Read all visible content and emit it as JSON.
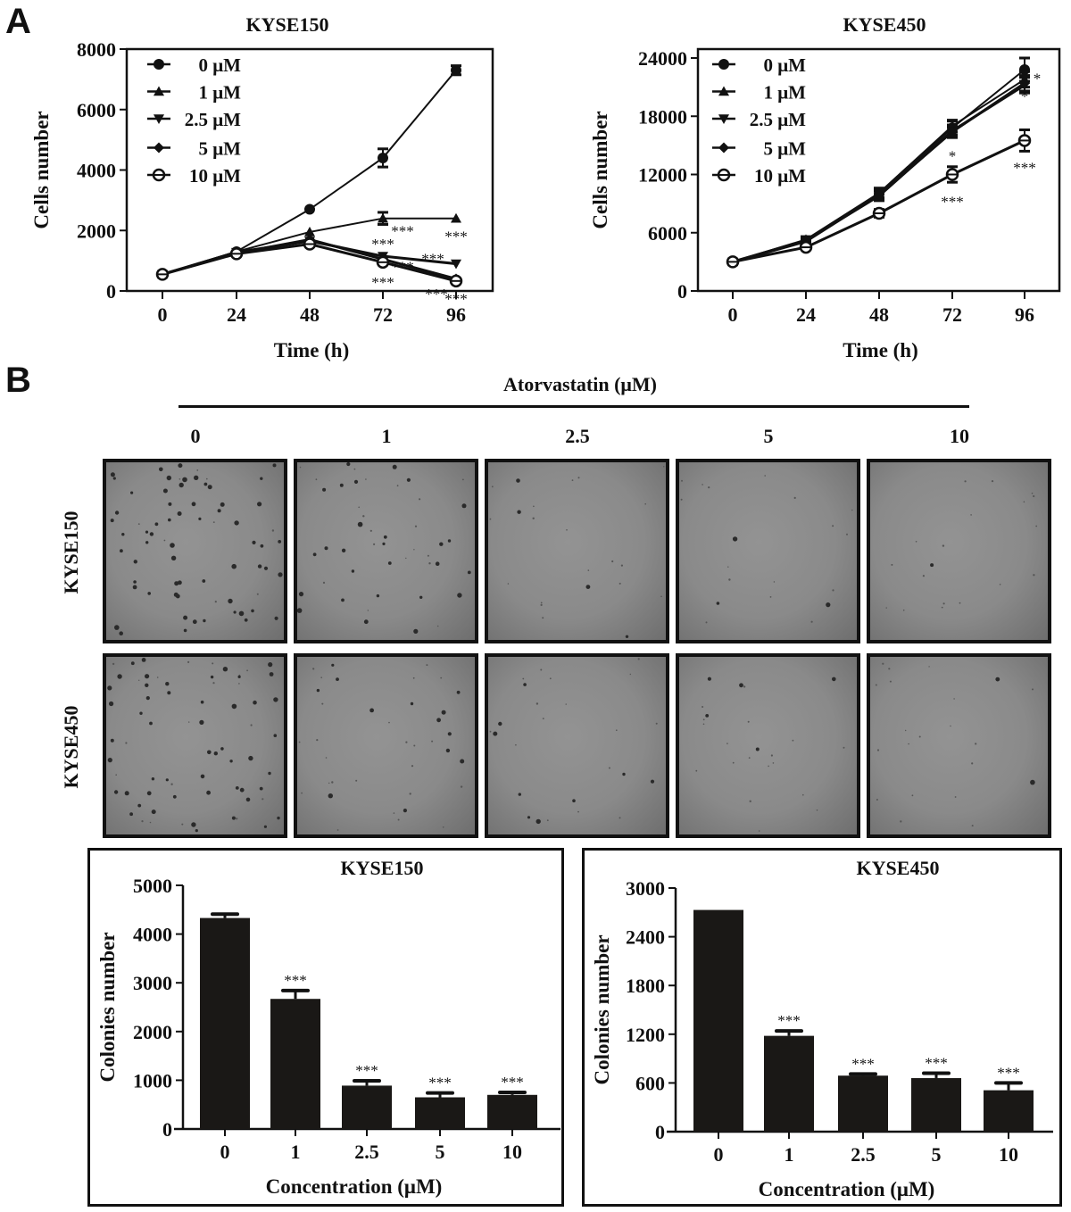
{
  "panels": {
    "a_label": "A",
    "b_label": "B"
  },
  "colors": {
    "ink": "#111111",
    "bar": "#1a1816",
    "micrograph": "#8a8a8a",
    "background": "#ffffff"
  },
  "micrographs": {
    "header": "Atorvastatin (μM)",
    "concentrations": [
      "0",
      "1",
      "2.5",
      "5",
      "10"
    ],
    "rows": [
      "KYSE150",
      "KYSE450"
    ],
    "relative_colony_density": [
      [
        1.0,
        0.6,
        0.2,
        0.15,
        0.15
      ],
      [
        1.0,
        0.45,
        0.25,
        0.22,
        0.18
      ]
    ]
  },
  "chart_data": [
    {
      "type": "line",
      "id": "growth-kyse150",
      "title": "KYSE150",
      "xlabel": "Time (h)",
      "ylabel": "Cells number",
      "x": [
        0,
        24,
        48,
        72,
        96
      ],
      "xticks": [
        "0",
        "24",
        "48",
        "72",
        "96"
      ],
      "yticks": [
        "0",
        "2000",
        "4000",
        "6000",
        "8000"
      ],
      "ylim": [
        0,
        8000
      ],
      "legend": "top-left",
      "series": [
        {
          "name": "0 μM",
          "marker": "circle",
          "values": [
            550,
            1300,
            2700,
            4400,
            7300
          ],
          "errors": [
            50,
            80,
            80,
            300,
            150
          ]
        },
        {
          "name": "1 μM",
          "marker": "triangle-up",
          "values": [
            550,
            1300,
            1950,
            2400,
            2400
          ],
          "errors": [
            50,
            60,
            80,
            200,
            50
          ]
        },
        {
          "name": "2.5 μM",
          "marker": "triangle-down",
          "values": [
            550,
            1280,
            1650,
            1150,
            900
          ],
          "errors": [
            50,
            60,
            80,
            80,
            50
          ]
        },
        {
          "name": "5 μM",
          "marker": "diamond",
          "values": [
            550,
            1250,
            1700,
            1050,
            400
          ],
          "errors": [
            50,
            60,
            80,
            60,
            50
          ]
        },
        {
          "name": "10 μM",
          "marker": "circle-open",
          "values": [
            550,
            1230,
            1550,
            950,
            330
          ],
          "errors": [
            50,
            60,
            80,
            60,
            40
          ]
        }
      ],
      "annotations": [
        {
          "text": "***",
          "series": "1 μM",
          "x": 72
        },
        {
          "text": "***",
          "series": "1 μM",
          "x": 96
        },
        {
          "text": "***",
          "series": "2.5 μM",
          "x": 72
        },
        {
          "text": "***",
          "series": "2.5 μM",
          "x": 96
        },
        {
          "text": "***",
          "series": "5 μM",
          "x": 72
        },
        {
          "text": "***",
          "series": "5 μM",
          "x": 96
        },
        {
          "text": "***",
          "series": "10 μM",
          "x": 72
        },
        {
          "text": "***",
          "series": "10 μM",
          "x": 96
        }
      ]
    },
    {
      "type": "line",
      "id": "growth-kyse450",
      "title": "KYSE450",
      "xlabel": "Time (h)",
      "ylabel": "Cells number",
      "x": [
        0,
        24,
        48,
        72,
        96
      ],
      "xticks": [
        "0",
        "24",
        "48",
        "72",
        "96"
      ],
      "yticks": [
        "0",
        "6000",
        "12000",
        "18000",
        "24000"
      ],
      "ylim": [
        0,
        25000
      ],
      "legend": "top-left",
      "series": [
        {
          "name": "0 μM",
          "marker": "circle",
          "values": [
            3000,
            5200,
            10000,
            16800,
            22800
          ],
          "errors": [
            150,
            300,
            500,
            700,
            1200
          ]
        },
        {
          "name": "1 μM",
          "marker": "triangle-up",
          "values": [
            3000,
            5300,
            10100,
            17000,
            21800
          ],
          "errors": [
            150,
            300,
            500,
            600,
            800
          ]
        },
        {
          "name": "2.5 μM",
          "marker": "triangle-down",
          "values": [
            3000,
            5200,
            9800,
            16500,
            21200
          ],
          "errors": [
            150,
            300,
            500,
            600,
            800
          ]
        },
        {
          "name": "5 μM",
          "marker": "diamond",
          "values": [
            3000,
            5100,
            9900,
            16400,
            21400
          ],
          "errors": [
            150,
            300,
            500,
            600,
            800
          ]
        },
        {
          "name": "10 μM",
          "marker": "circle-open",
          "values": [
            3000,
            4500,
            8000,
            12000,
            15500
          ],
          "errors": [
            150,
            200,
            400,
            800,
            1100
          ]
        }
      ],
      "annotations": [
        {
          "text": "*",
          "series": "2.5 μM",
          "x": 72
        },
        {
          "text": "*",
          "series": "2.5 μM",
          "x": 96
        },
        {
          "text": "*",
          "series": "5 μM",
          "x": 96
        },
        {
          "text": "***",
          "series": "10 μM",
          "x": 72
        },
        {
          "text": "***",
          "series": "10 μM",
          "x": 96
        }
      ]
    },
    {
      "type": "bar",
      "id": "colonies-kyse150",
      "title": "KYSE150",
      "xlabel": "Concentration (μM)",
      "ylabel": "Colonies number",
      "categories": [
        "0",
        "1",
        "2.5",
        "5",
        "10"
      ],
      "values": [
        4330,
        2670,
        890,
        650,
        700
      ],
      "errors": [
        80,
        170,
        100,
        90,
        50
      ],
      "significance": [
        "",
        "***",
        "***",
        "***",
        "***"
      ],
      "yticks": [
        "0",
        "1000",
        "2000",
        "3000",
        "4000",
        "5000"
      ],
      "ylim": [
        0,
        5000
      ]
    },
    {
      "type": "bar",
      "id": "colonies-kyse450",
      "title": "KYSE450",
      "xlabel": "Concentration (μM)",
      "ylabel": "Colonies number",
      "categories": [
        "0",
        "1",
        "2.5",
        "5",
        "10"
      ],
      "values": [
        2730,
        1180,
        690,
        660,
        510
      ],
      "errors": [
        0,
        60,
        20,
        60,
        90
      ],
      "significance": [
        "",
        "***",
        "***",
        "***",
        "***"
      ],
      "yticks": [
        "0",
        "600",
        "1200",
        "1800",
        "2400",
        "3000"
      ],
      "ylim": [
        0,
        3000
      ]
    }
  ]
}
